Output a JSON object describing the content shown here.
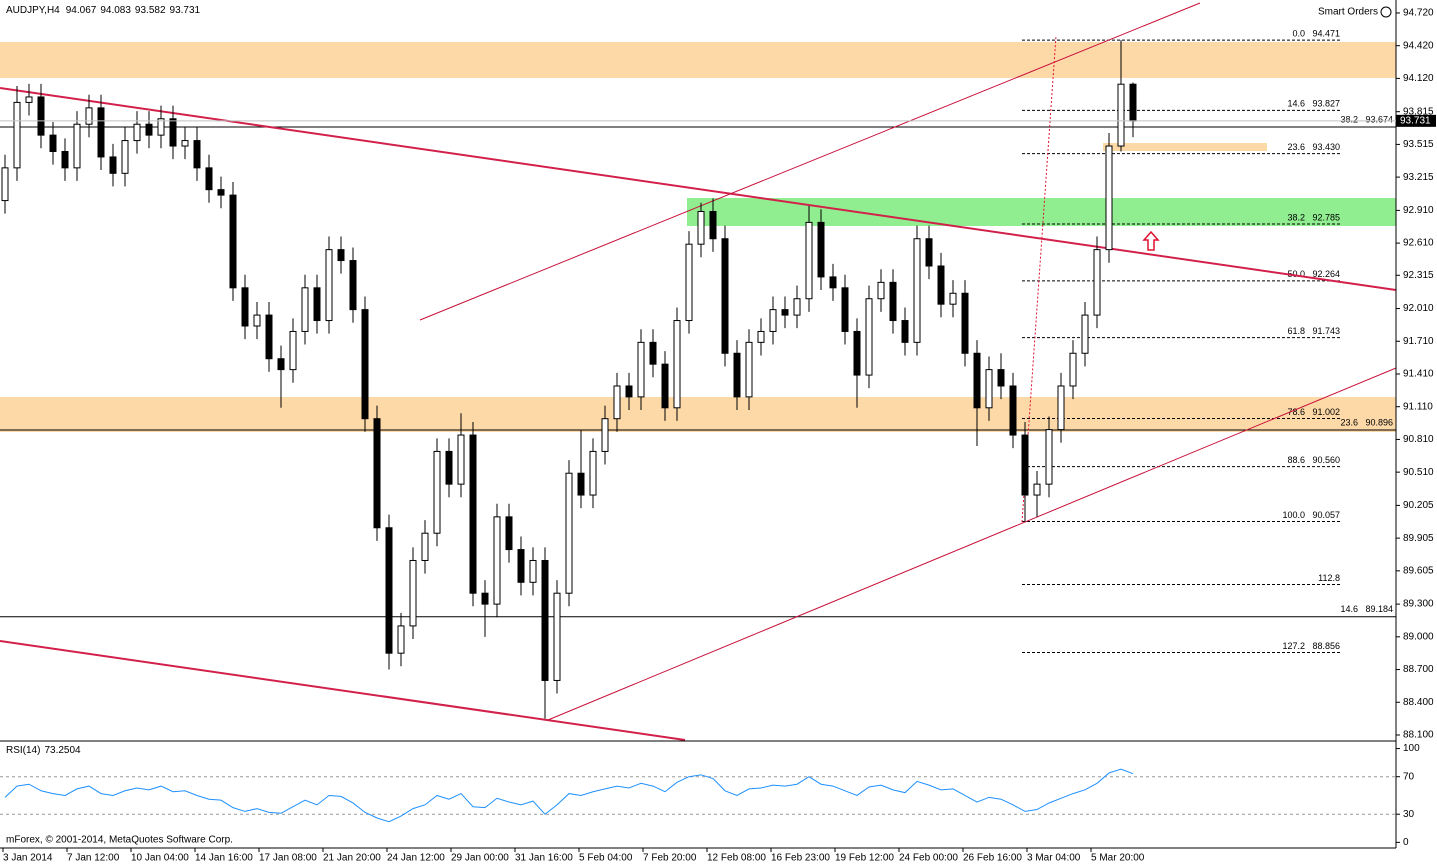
{
  "chart_data": {
    "type": "candlestick",
    "symbol": "AUDJPY,H4",
    "credit": "mForex, © 2001-2014, MetaQuotes Software Corp.",
    "smart_orders": "Smart Orders",
    "ylim": [
      88.054,
      94.839
    ],
    "yticks": [
      {
        "value": 94.72,
        "label": "94.720"
      },
      {
        "value": 94.42,
        "label": "94.420"
      },
      {
        "value": 94.12,
        "label": "94.120"
      },
      93.815,
      93.515,
      93.215,
      {
        "value": 92.91,
        "label": "92.910"
      },
      {
        "value": 92.61,
        "label": "92.610"
      },
      92.315,
      {
        "value": 92.01,
        "label": "92.010"
      },
      {
        "value": 91.71,
        "label": "91.710"
      },
      {
        "value": 91.41,
        "label": "91.410"
      },
      {
        "value": 91.11,
        "label": "91.110"
      },
      {
        "value": 90.81,
        "label": "90.810"
      },
      {
        "value": 90.51,
        "label": "90.510"
      },
      90.205,
      89.905,
      89.605,
      {
        "value": 89.3,
        "label": "89.300"
      },
      {
        "value": 89.0,
        "label": "89.000"
      },
      {
        "value": 88.7,
        "label": "88.700"
      },
      {
        "value": 88.4,
        "label": "88.400"
      },
      {
        "value": 88.1,
        "label": "88.100"
      }
    ],
    "x_tick_labels": [
      "3 Jan 2014",
      "7 Jan 12:00",
      "10 Jan 04:00",
      "14 Jan 16:00",
      "17 Jan 08:00",
      "21 Jan 20:00",
      "24 Jan 12:00",
      "29 Jan 00:00",
      "31 Jan 16:00",
      "5 Feb 04:00",
      "7 Feb 20:00",
      "12 Feb 08:00",
      "16 Feb 23:00",
      "19 Feb 12:00",
      "24 Feb 00:00",
      "26 Feb 16:00",
      "3 Mar 04:00",
      "5 Mar 20:00"
    ],
    "open": [
      93.0,
      93.3,
      93.9,
      93.95,
      93.6,
      93.45,
      93.3,
      93.7,
      93.85,
      93.4,
      93.25,
      93.55,
      93.7,
      93.6,
      93.75,
      93.5,
      93.55,
      93.3,
      93.1,
      93.05,
      92.2,
      91.85,
      91.95,
      91.55,
      91.45,
      91.8,
      92.2,
      91.9,
      92.55,
      92.45,
      92.0,
      91.0,
      90.0,
      88.85,
      89.1,
      89.7,
      89.95,
      90.7,
      90.4,
      90.85,
      89.4,
      89.3,
      90.1,
      89.8,
      89.5,
      89.7,
      88.6,
      89.4,
      90.5,
      90.3,
      90.7,
      91.0,
      91.3,
      91.2,
      91.7,
      91.5,
      91.1,
      91.9,
      92.6,
      92.9,
      92.65,
      91.6,
      91.2,
      91.7,
      91.8,
      92.0,
      91.95,
      92.1,
      92.8,
      92.3,
      92.2,
      91.8,
      91.4,
      92.1,
      92.25,
      91.9,
      91.7,
      92.65,
      92.4,
      92.05,
      92.15,
      91.6,
      91.1,
      91.45,
      91.3,
      90.85,
      90.3,
      90.4,
      90.9,
      91.3,
      91.6,
      91.95,
      92.55,
      93.5,
      94.067
    ],
    "high": [
      93.42,
      94.05,
      94.07,
      94.07,
      93.72,
      93.57,
      93.82,
      93.97,
      93.97,
      93.52,
      93.67,
      93.82,
      93.82,
      93.87,
      93.87,
      93.67,
      93.67,
      93.42,
      93.22,
      93.17,
      92.32,
      92.07,
      92.07,
      91.67,
      91.92,
      92.32,
      92.32,
      92.67,
      92.67,
      92.57,
      92.12,
      91.12,
      90.12,
      89.22,
      89.82,
      90.07,
      90.82,
      90.82,
      91.05,
      90.97,
      89.52,
      90.22,
      90.22,
      89.92,
      89.82,
      89.82,
      89.52,
      90.62,
      90.9,
      90.82,
      91.12,
      91.42,
      91.42,
      91.82,
      91.82,
      91.62,
      92.02,
      92.72,
      92.98,
      93.02,
      92.77,
      91.72,
      91.82,
      91.92,
      92.12,
      92.12,
      92.22,
      92.95,
      92.92,
      92.42,
      92.32,
      91.92,
      92.22,
      92.37,
      92.37,
      92.02,
      92.77,
      92.77,
      92.52,
      92.27,
      92.27,
      91.72,
      91.57,
      91.6,
      91.42,
      90.97,
      90.52,
      91.02,
      91.42,
      91.72,
      92.07,
      92.67,
      93.62,
      94.471,
      94.083
    ],
    "low": [
      92.88,
      93.18,
      93.78,
      93.48,
      93.33,
      93.18,
      93.18,
      93.58,
      93.28,
      93.13,
      93.13,
      93.43,
      93.48,
      93.48,
      93.38,
      93.38,
      93.18,
      92.98,
      92.93,
      92.08,
      91.73,
      91.73,
      91.43,
      91.1,
      91.33,
      91.68,
      91.78,
      91.78,
      92.33,
      91.88,
      90.88,
      89.88,
      88.7,
      88.73,
      88.98,
      89.58,
      89.83,
      90.28,
      90.28,
      89.28,
      89.0,
      89.18,
      89.68,
      89.38,
      89.38,
      88.25,
      88.48,
      89.28,
      90.18,
      90.18,
      90.58,
      90.88,
      91.08,
      91.08,
      91.38,
      90.98,
      90.98,
      91.78,
      92.48,
      92.53,
      91.48,
      91.08,
      91.08,
      91.58,
      91.68,
      91.83,
      91.83,
      91.98,
      92.18,
      92.08,
      91.68,
      91.1,
      91.28,
      91.98,
      91.78,
      91.58,
      91.58,
      92.28,
      91.93,
      91.93,
      91.48,
      90.75,
      90.98,
      91.18,
      90.73,
      90.057,
      90.1,
      90.28,
      90.78,
      91.18,
      91.48,
      91.83,
      92.43,
      93.45,
      93.582
    ],
    "close": [
      93.3,
      93.9,
      93.95,
      93.6,
      93.45,
      93.3,
      93.7,
      93.85,
      93.4,
      93.25,
      93.55,
      93.7,
      93.6,
      93.75,
      93.5,
      93.55,
      93.3,
      93.1,
      93.05,
      92.2,
      91.85,
      91.95,
      91.55,
      91.45,
      91.8,
      92.2,
      91.9,
      92.55,
      92.45,
      92.0,
      91.0,
      90.0,
      88.85,
      89.1,
      89.7,
      89.95,
      90.7,
      90.4,
      90.85,
      89.4,
      89.3,
      90.1,
      89.8,
      89.5,
      89.7,
      88.6,
      89.4,
      90.5,
      90.3,
      90.7,
      91.0,
      91.3,
      91.2,
      91.7,
      91.5,
      91.1,
      91.9,
      92.6,
      92.9,
      92.65,
      91.6,
      91.2,
      91.7,
      91.8,
      92.0,
      91.95,
      92.1,
      92.8,
      92.3,
      92.2,
      91.8,
      91.4,
      92.1,
      92.25,
      91.9,
      91.7,
      92.65,
      92.4,
      92.05,
      92.15,
      91.6,
      91.1,
      91.45,
      91.3,
      90.85,
      90.3,
      90.4,
      90.9,
      91.3,
      91.6,
      91.95,
      92.55,
      93.5,
      94.067,
      93.731
    ],
    "levels": [
      {
        "label": "38.2   93.674",
        "value": 93.674
      },
      {
        "label": "23.6   90.896",
        "value": 90.896
      },
      {
        "label": "14.6   89.184",
        "value": 89.184
      }
    ],
    "fibonacci": [
      {
        "label": "0.0   94.471",
        "value": 94.471
      },
      {
        "label": "14.6   93.827",
        "value": 93.827
      },
      {
        "label": "23.6   93.430",
        "value": 93.43
      },
      {
        "label": "38.2   92.785",
        "value": 92.785
      },
      {
        "label": "50.0   92.264",
        "value": 92.264
      },
      {
        "label": "61.8   91.743",
        "value": 91.743
      },
      {
        "label": "78.6   91.002",
        "value": 91.002
      },
      {
        "label": "88.6   90.560",
        "value": 90.56
      },
      {
        "label": "100.0   90.057",
        "value": 90.057
      },
      {
        "label": "112.8",
        "value": 89.48
      },
      {
        "label": "127.2   88.856",
        "value": 88.856
      }
    ],
    "rsi": {
      "name": "RSI(14)",
      "color": "#1e90ff",
      "ylim": [
        -6,
        107
      ],
      "yticks": [
        100,
        70,
        30,
        0
      ],
      "values": [
        48,
        60,
        62,
        55,
        52,
        50,
        57,
        60,
        52,
        50,
        55,
        58,
        56,
        60,
        54,
        55,
        50,
        46,
        45,
        37,
        33,
        36,
        32,
        31,
        38,
        45,
        40,
        50,
        49,
        42,
        32,
        26,
        22,
        28,
        36,
        40,
        50,
        46,
        52,
        38,
        37,
        47,
        43,
        40,
        44,
        30,
        40,
        52,
        50,
        54,
        57,
        60,
        58,
        63,
        60,
        54,
        64,
        70,
        72,
        68,
        55,
        50,
        57,
        58,
        61,
        60,
        62,
        70,
        62,
        60,
        55,
        50,
        59,
        61,
        56,
        53,
        65,
        61,
        56,
        57,
        50,
        43,
        48,
        46,
        40,
        33,
        35,
        42,
        47,
        52,
        56,
        63,
        74,
        78,
        73.2504
      ]
    }
  }
}
